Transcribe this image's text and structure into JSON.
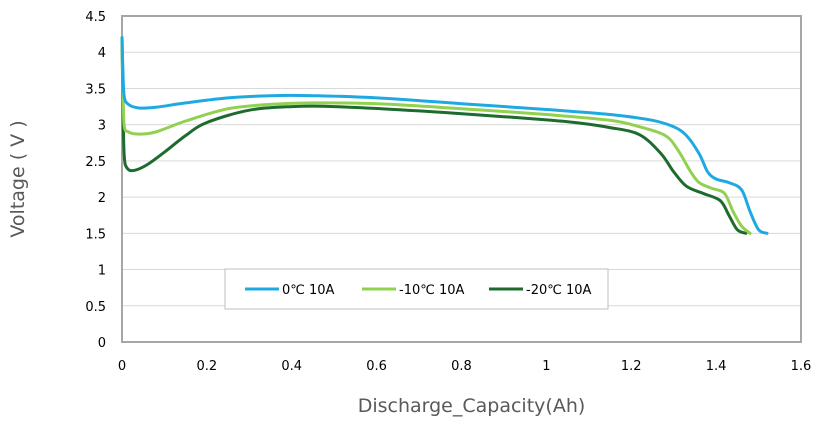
{
  "chart_data": {
    "type": "line",
    "xlabel": "Discharge_Capacity(Ah)",
    "ylabel": "Voltage ( V )",
    "xlim": [
      0,
      1.6
    ],
    "ylim": [
      0,
      4.5
    ],
    "x_ticks": [
      "0",
      "0.2",
      "0.4",
      "0.6",
      "0.8",
      "1",
      "1.2",
      "1.4",
      "1.6"
    ],
    "y_ticks": [
      "0",
      "0.5",
      "1",
      "1.5",
      "2",
      "2.5",
      "3",
      "3.5",
      "4",
      "4.5"
    ],
    "grid": "horizontal",
    "legend_position": "bottom-center",
    "series": [
      {
        "name": "0℃ 10A",
        "color": "#1fa9e1",
        "points": [
          [
            0,
            4.2
          ],
          [
            0.002,
            3.8
          ],
          [
            0.005,
            3.4
          ],
          [
            0.015,
            3.28
          ],
          [
            0.04,
            3.23
          ],
          [
            0.08,
            3.24
          ],
          [
            0.15,
            3.3
          ],
          [
            0.25,
            3.37
          ],
          [
            0.35,
            3.4
          ],
          [
            0.45,
            3.4
          ],
          [
            0.6,
            3.37
          ],
          [
            0.8,
            3.29
          ],
          [
            1.0,
            3.21
          ],
          [
            1.15,
            3.14
          ],
          [
            1.25,
            3.06
          ],
          [
            1.3,
            2.97
          ],
          [
            1.33,
            2.85
          ],
          [
            1.36,
            2.6
          ],
          [
            1.38,
            2.35
          ],
          [
            1.4,
            2.25
          ],
          [
            1.43,
            2.2
          ],
          [
            1.46,
            2.1
          ],
          [
            1.48,
            1.8
          ],
          [
            1.5,
            1.55
          ],
          [
            1.52,
            1.5
          ]
        ]
      },
      {
        "name": "-10℃ 10A",
        "color": "#92d050",
        "points": [
          [
            0,
            4.2
          ],
          [
            0.002,
            3.6
          ],
          [
            0.005,
            3.0
          ],
          [
            0.015,
            2.9
          ],
          [
            0.04,
            2.87
          ],
          [
            0.08,
            2.9
          ],
          [
            0.15,
            3.05
          ],
          [
            0.25,
            3.22
          ],
          [
            0.35,
            3.28
          ],
          [
            0.45,
            3.3
          ],
          [
            0.6,
            3.29
          ],
          [
            0.8,
            3.22
          ],
          [
            1.0,
            3.14
          ],
          [
            1.15,
            3.06
          ],
          [
            1.22,
            2.97
          ],
          [
            1.28,
            2.85
          ],
          [
            1.31,
            2.65
          ],
          [
            1.34,
            2.35
          ],
          [
            1.36,
            2.2
          ],
          [
            1.39,
            2.12
          ],
          [
            1.42,
            2.05
          ],
          [
            1.44,
            1.8
          ],
          [
            1.46,
            1.6
          ],
          [
            1.48,
            1.5
          ]
        ]
      },
      {
        "name": "-20℃ 10A",
        "color": "#1e6b2e",
        "points": [
          [
            0,
            4.2
          ],
          [
            0.002,
            3.4
          ],
          [
            0.005,
            2.6
          ],
          [
            0.012,
            2.4
          ],
          [
            0.03,
            2.37
          ],
          [
            0.06,
            2.45
          ],
          [
            0.1,
            2.62
          ],
          [
            0.15,
            2.85
          ],
          [
            0.2,
            3.03
          ],
          [
            0.3,
            3.2
          ],
          [
            0.4,
            3.25
          ],
          [
            0.5,
            3.25
          ],
          [
            0.7,
            3.19
          ],
          [
            0.9,
            3.11
          ],
          [
            1.05,
            3.04
          ],
          [
            1.15,
            2.96
          ],
          [
            1.22,
            2.86
          ],
          [
            1.27,
            2.6
          ],
          [
            1.3,
            2.35
          ],
          [
            1.33,
            2.15
          ],
          [
            1.37,
            2.05
          ],
          [
            1.41,
            1.95
          ],
          [
            1.43,
            1.75
          ],
          [
            1.45,
            1.55
          ],
          [
            1.47,
            1.5
          ]
        ]
      }
    ]
  }
}
